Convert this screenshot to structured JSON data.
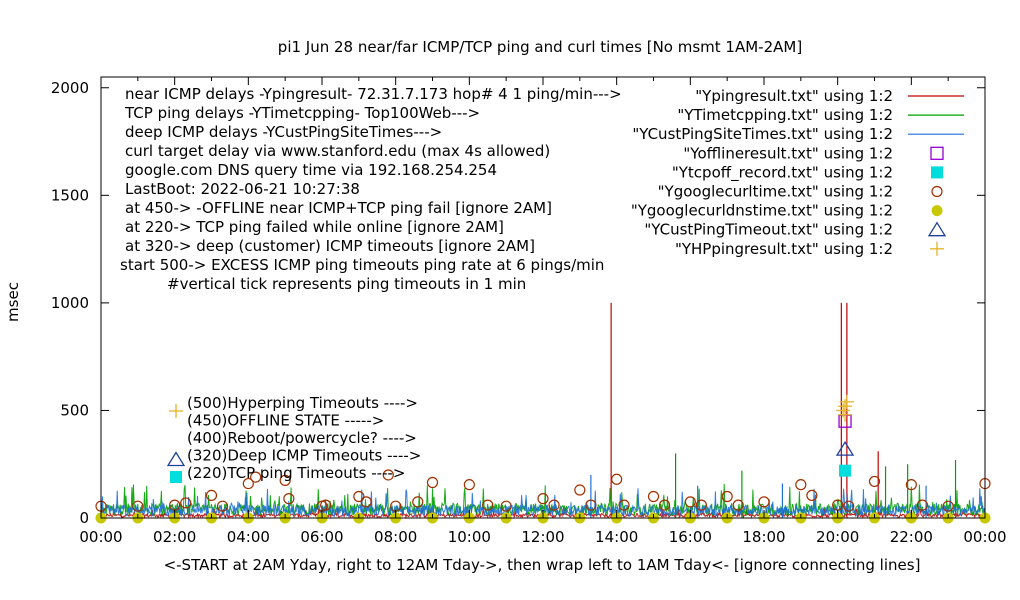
{
  "chart_data": {
    "type": "line",
    "title": "pi1 Jun 28  near/far ICMP/TCP ping and curl times [No msmt 1AM-2AM]",
    "ylabel": "msec",
    "xlabel": "<-START at 2AM Yday, right to 12AM Tday->, then wrap left to 1AM Tday<- [ignore connecting lines]",
    "xlim": [
      0,
      24
    ],
    "ylim": [
      0,
      2050
    ],
    "x_tick_labels": [
      "00:00",
      "02:00",
      "04:00",
      "06:00",
      "08:00",
      "10:00",
      "12:00",
      "14:00",
      "16:00",
      "18:00",
      "20:00",
      "22:00",
      "00:00"
    ],
    "y_tick_labels": [
      "0",
      "500",
      "1000",
      "1500",
      "2000"
    ],
    "y_ticks": [
      0,
      500,
      1000,
      1500,
      2000
    ],
    "grid": false,
    "notes": [
      "near ICMP delays -Ypingresult- 72.31.7.173 hop# 4 1 ping/min--->",
      "TCP ping delays -YTimetcpping- Top100Web--->",
      "deep ICMP delays -YCustPingSiteTimes--->",
      "curl target delay via www.stanford.edu (max 4s allowed)",
      "google.com DNS query time via 192.168.254.254",
      "LastBoot: 2022-06-21 10:27:38",
      "at 450-> -OFFLINE near ICMP+TCP ping fail [ignore 2AM]",
      "at 220-> TCP ping failed while online [ignore 2AM]",
      "at 320-> deep (customer) ICMP timeouts [ignore 2AM]",
      "start 500-> EXCESS ICMP ping timeouts ping rate at 6 pings/min",
      "#vertical tick represents ping timeouts in 1 min"
    ],
    "marker_notes": [
      {
        "label": "(500)Hyperping Timeouts ---->",
        "symbol": "plus",
        "color": "#e6b422"
      },
      {
        "label": "(450)OFFLINE STATE ----->",
        "symbol": "none",
        "color": "#9400d3"
      },
      {
        "label": "(400)Reboot/powercycle? ---->",
        "symbol": "none",
        "color": "#000000"
      },
      {
        "label": "(320)Deep ICMP Timeouts ---->",
        "symbol": "triangle",
        "color": "#2040a0"
      },
      {
        "label": "(220)TCP ping Timeouts ---->",
        "symbol": "square",
        "color": "#00dddd"
      }
    ],
    "legend_position": "top-right",
    "series": [
      {
        "name": "\"Ypingresult.txt\" using 1:2",
        "style": "line",
        "color": "#c00000",
        "baseline": 12,
        "spikes": [
          [
            13.85,
            1000
          ],
          [
            20.1,
            1000
          ],
          [
            20.25,
            1000
          ],
          [
            21.1,
            310
          ]
        ]
      },
      {
        "name": "\"YTimetcpping.txt\" using 1:2",
        "style": "line",
        "color": "#00a000",
        "baseline": 40,
        "spikes": [
          [
            15.6,
            300
          ],
          [
            21.3,
            240
          ],
          [
            21.9,
            250
          ],
          [
            23.2,
            270
          ],
          [
            17.4,
            220
          ]
        ]
      },
      {
        "name": "\"YCustPingSiteTimes.txt\" using 1:2",
        "style": "line",
        "color": "#1e6fd8",
        "baseline": 35,
        "spikes": [
          [
            13.3,
            200
          ],
          [
            16.2,
            150
          ],
          [
            18.5,
            160
          ],
          [
            22.4,
            150
          ]
        ]
      },
      {
        "name": "\"Yofflineresult.txt\" using 1:2",
        "style": "square-open",
        "color": "#9400d3",
        "points": [
          [
            20.2,
            450
          ]
        ]
      },
      {
        "name": "\"Ytcpoff_record.txt\" using 1:2",
        "style": "square-filled",
        "color": "#00dddd",
        "points": [
          [
            20.2,
            220
          ]
        ]
      },
      {
        "name": "\"Ygooglecurltime.txt\" using 1:2",
        "style": "circle-open",
        "color": "#a03000",
        "points": [
          [
            0.0,
            55
          ],
          [
            1.0,
            55
          ],
          [
            2.0,
            60
          ],
          [
            2.3,
            70
          ],
          [
            3.0,
            105
          ],
          [
            3.3,
            55
          ],
          [
            4.0,
            160
          ],
          [
            4.2,
            190
          ],
          [
            5.0,
            175
          ],
          [
            5.1,
            90
          ],
          [
            6.0,
            55
          ],
          [
            6.1,
            60
          ],
          [
            7.0,
            100
          ],
          [
            7.2,
            75
          ],
          [
            7.8,
            200
          ],
          [
            8.0,
            55
          ],
          [
            8.6,
            75
          ],
          [
            9.0,
            165
          ],
          [
            10.0,
            155
          ],
          [
            10.5,
            60
          ],
          [
            11.0,
            55
          ],
          [
            12.0,
            90
          ],
          [
            12.3,
            60
          ],
          [
            13.0,
            130
          ],
          [
            13.3,
            60
          ],
          [
            14.0,
            180
          ],
          [
            14.2,
            60
          ],
          [
            15.0,
            100
          ],
          [
            15.3,
            60
          ],
          [
            16.0,
            75
          ],
          [
            16.3,
            60
          ],
          [
            17.0,
            100
          ],
          [
            17.3,
            60
          ],
          [
            18.0,
            75
          ],
          [
            19.0,
            155
          ],
          [
            19.3,
            105
          ],
          [
            20.0,
            60
          ],
          [
            20.3,
            55
          ],
          [
            21.0,
            170
          ],
          [
            22.0,
            155
          ],
          [
            22.3,
            60
          ],
          [
            23.0,
            55
          ],
          [
            24.0,
            160
          ]
        ]
      },
      {
        "name": "\"Ygooglecurldnstime.txt\" using 1:2",
        "style": "circle-filled",
        "color": "#c8c800",
        "points": [
          [
            0.0,
            0
          ],
          [
            1.0,
            0
          ],
          [
            2.0,
            0
          ],
          [
            3.0,
            0
          ],
          [
            4.0,
            0
          ],
          [
            5.0,
            0
          ],
          [
            6.0,
            0
          ],
          [
            7.0,
            0
          ],
          [
            8.0,
            0
          ],
          [
            9.0,
            0
          ],
          [
            10.0,
            0
          ],
          [
            11.0,
            0
          ],
          [
            12.0,
            0
          ],
          [
            13.0,
            0
          ],
          [
            14.0,
            0
          ],
          [
            15.0,
            0
          ],
          [
            16.0,
            0
          ],
          [
            17.0,
            0
          ],
          [
            18.0,
            0
          ],
          [
            19.0,
            0
          ],
          [
            20.0,
            0
          ],
          [
            21.0,
            0
          ],
          [
            22.0,
            0
          ],
          [
            23.0,
            0
          ],
          [
            24.0,
            0
          ]
        ]
      },
      {
        "name": "\"YCustPingTimeout.txt\" using 1:2",
        "style": "triangle-open",
        "color": "#2040a0",
        "points": [
          [
            20.2,
            320
          ]
        ]
      },
      {
        "name": "\"YHPpingresult.txt\" using 1:2",
        "style": "plus",
        "color": "#e6b422",
        "points": [
          [
            20.15,
            500
          ],
          [
            20.2,
            520
          ],
          [
            20.25,
            540
          ],
          [
            20.2,
            480
          ]
        ]
      }
    ]
  }
}
